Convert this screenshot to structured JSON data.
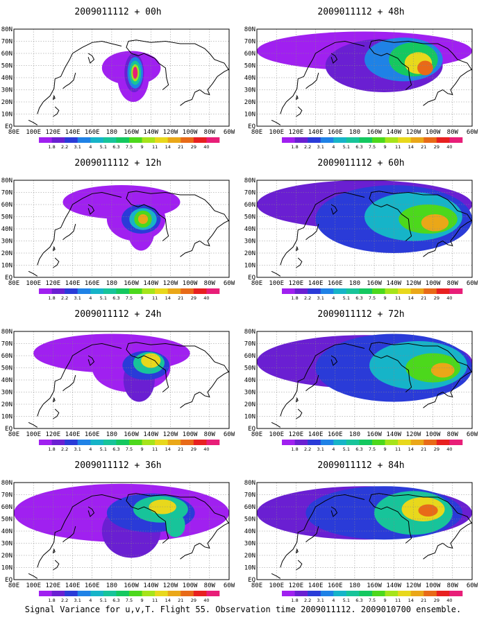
{
  "colorbar": {
    "labels": [
      "1.8",
      "2.2",
      "3.1",
      "4",
      "5.1",
      "6.3",
      "7.5",
      "9",
      "11",
      "14",
      "21",
      "29",
      "40"
    ],
    "colors": [
      "#a020f0",
      "#6a1fd2",
      "#2a3bd8",
      "#1f82e6",
      "#16b4c8",
      "#17c49a",
      "#14c860",
      "#4cd81c",
      "#a6e41a",
      "#e8d81c",
      "#eaa718",
      "#e86a18",
      "#e82020",
      "#e81e78"
    ]
  },
  "axes": {
    "x_ticks": [
      "80E",
      "100E",
      "120E",
      "140E",
      "160E",
      "180",
      "160W",
      "140W",
      "120W",
      "100W",
      "80W",
      "60W"
    ],
    "y_ticks": [
      "EQ",
      "10N",
      "20N",
      "30N",
      "40N",
      "50N",
      "60N",
      "70N",
      "80N"
    ]
  },
  "panels": [
    {
      "title": "2009011112 + 00h",
      "lead_hours": 0
    },
    {
      "title": "2009011112 + 48h",
      "lead_hours": 48
    },
    {
      "title": "2009011112 + 12h",
      "lead_hours": 12
    },
    {
      "title": "2009011112 + 60h",
      "lead_hours": 60
    },
    {
      "title": "2009011112 + 24h",
      "lead_hours": 24
    },
    {
      "title": "2009011112 + 72h",
      "lead_hours": 72
    },
    {
      "title": "2009011112 + 36h",
      "lead_hours": 36
    },
    {
      "title": "2009011112 + 84h",
      "lead_hours": 84
    }
  ],
  "caption": "Signal Variance for u,v,T. Flight 55. Observation time 2009011112. 2009010700 ensemble."
}
